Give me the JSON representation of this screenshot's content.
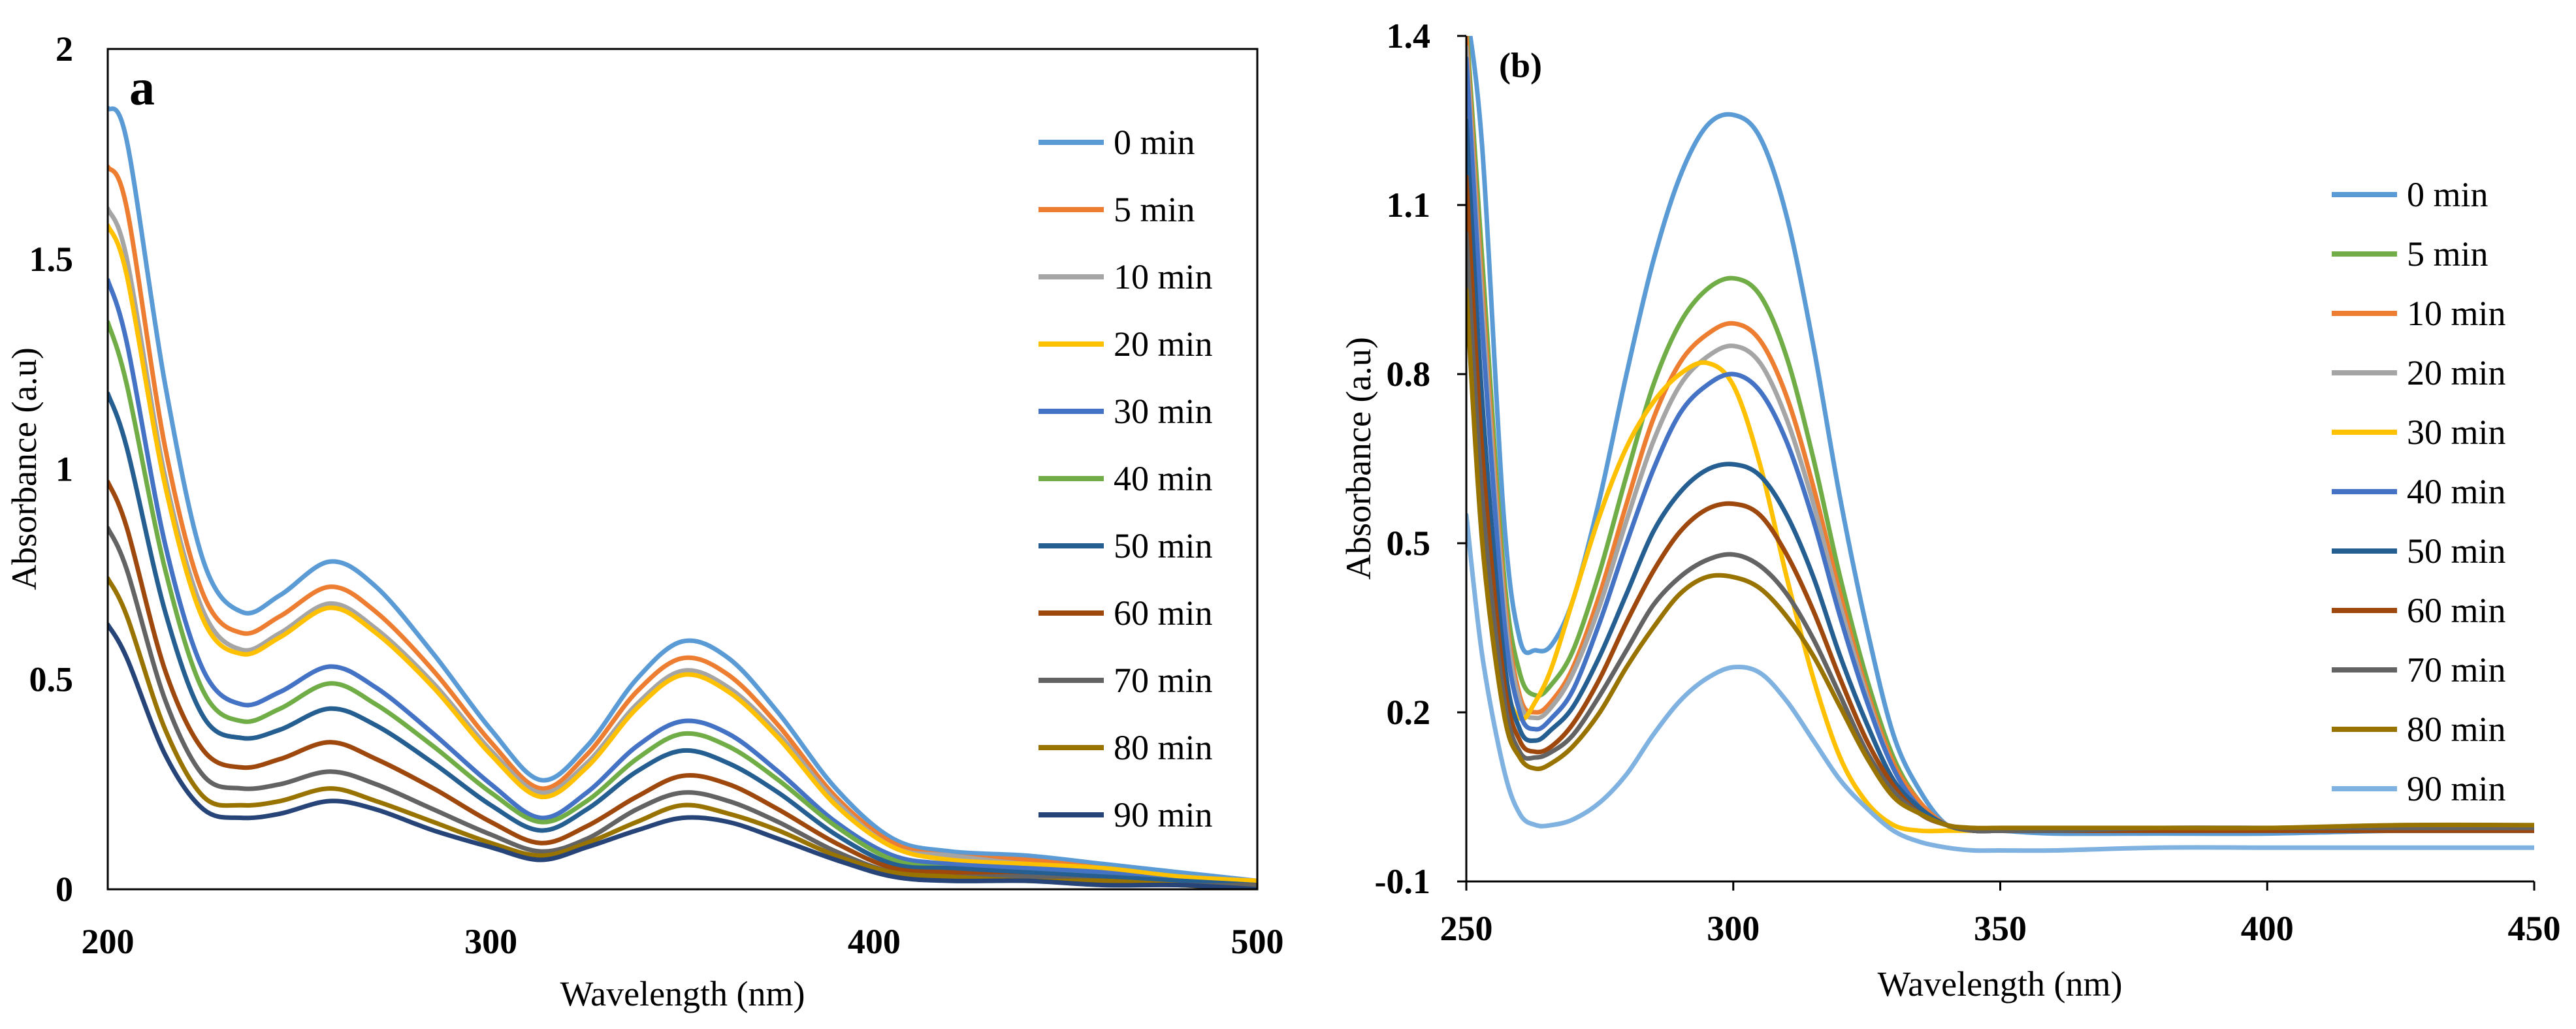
{
  "chart_data": [
    {
      "type": "line",
      "panel_label": "a",
      "title": "",
      "xlabel": "Wavelength (nm)",
      "ylabel": "Absorbance (a.u)",
      "xlim": [
        200,
        500
      ],
      "ylim": [
        0,
        2
      ],
      "x_ticks": [
        {
          "value": 200,
          "label": "200"
        },
        {
          "value": 300,
          "label": "300"
        },
        {
          "value": 400,
          "label": "400"
        },
        {
          "value": 500,
          "label": "500"
        }
      ],
      "y_ticks": [
        {
          "value": 0,
          "label": "0"
        },
        {
          "value": 0.5,
          "label": "0.5"
        },
        {
          "value": 1,
          "label": "1"
        },
        {
          "value": 1.5,
          "label": "1.5"
        },
        {
          "value": 2,
          "label": "2"
        }
      ],
      "legend_position": "right",
      "grid": false,
      "x": [
        200,
        205,
        215,
        225,
        235,
        245,
        258,
        270,
        285,
        300,
        313,
        325,
        338,
        350,
        362,
        375,
        390,
        405,
        420,
        440,
        460,
        480,
        500
      ],
      "series": [
        {
          "name": "0 min",
          "color": "#5B9BD5",
          "values": [
            1.86,
            1.78,
            1.2,
            0.78,
            0.66,
            0.7,
            0.78,
            0.72,
            0.56,
            0.38,
            0.26,
            0.34,
            0.5,
            0.59,
            0.55,
            0.42,
            0.24,
            0.12,
            0.09,
            0.08,
            0.06,
            0.04,
            0.02
          ]
        },
        {
          "name": "5 min",
          "color": "#ED7D31",
          "values": [
            1.72,
            1.62,
            1.05,
            0.7,
            0.61,
            0.65,
            0.72,
            0.66,
            0.52,
            0.35,
            0.24,
            0.32,
            0.47,
            0.55,
            0.51,
            0.39,
            0.22,
            0.11,
            0.08,
            0.07,
            0.05,
            0.03,
            0.02
          ]
        },
        {
          "name": "10 min",
          "color": "#A5A5A5",
          "values": [
            1.62,
            1.5,
            0.98,
            0.66,
            0.57,
            0.61,
            0.68,
            0.62,
            0.49,
            0.33,
            0.23,
            0.3,
            0.44,
            0.52,
            0.48,
            0.37,
            0.21,
            0.1,
            0.08,
            0.06,
            0.05,
            0.03,
            0.02
          ]
        },
        {
          "name": "20 min",
          "color": "#FFC000",
          "values": [
            1.58,
            1.46,
            0.96,
            0.64,
            0.56,
            0.6,
            0.67,
            0.61,
            0.48,
            0.32,
            0.22,
            0.29,
            0.43,
            0.51,
            0.47,
            0.36,
            0.2,
            0.1,
            0.07,
            0.06,
            0.05,
            0.03,
            0.02
          ]
        },
        {
          "name": "30 min",
          "color": "#4472C4",
          "values": [
            1.45,
            1.3,
            0.82,
            0.52,
            0.44,
            0.47,
            0.53,
            0.48,
            0.37,
            0.25,
            0.17,
            0.23,
            0.34,
            0.4,
            0.37,
            0.28,
            0.16,
            0.08,
            0.06,
            0.05,
            0.04,
            0.02,
            0.01
          ]
        },
        {
          "name": "40 min",
          "color": "#70AD47",
          "values": [
            1.35,
            1.2,
            0.76,
            0.47,
            0.4,
            0.43,
            0.49,
            0.44,
            0.34,
            0.23,
            0.16,
            0.21,
            0.31,
            0.37,
            0.34,
            0.26,
            0.15,
            0.07,
            0.05,
            0.04,
            0.03,
            0.02,
            0.01
          ]
        },
        {
          "name": "50 min",
          "color": "#255E91",
          "values": [
            1.18,
            1.05,
            0.66,
            0.41,
            0.36,
            0.38,
            0.43,
            0.39,
            0.3,
            0.2,
            0.14,
            0.19,
            0.28,
            0.33,
            0.3,
            0.23,
            0.13,
            0.06,
            0.05,
            0.04,
            0.03,
            0.02,
            0.01
          ]
        },
        {
          "name": "60 min",
          "color": "#9E480E",
          "values": [
            0.97,
            0.86,
            0.52,
            0.33,
            0.29,
            0.31,
            0.35,
            0.31,
            0.24,
            0.16,
            0.11,
            0.15,
            0.22,
            0.27,
            0.25,
            0.19,
            0.11,
            0.05,
            0.04,
            0.03,
            0.02,
            0.01,
            0.01
          ]
        },
        {
          "name": "70 min",
          "color": "#636363",
          "values": [
            0.86,
            0.76,
            0.45,
            0.27,
            0.24,
            0.25,
            0.28,
            0.25,
            0.19,
            0.13,
            0.09,
            0.12,
            0.19,
            0.23,
            0.21,
            0.16,
            0.09,
            0.04,
            0.03,
            0.03,
            0.02,
            0.01,
            0.01
          ]
        },
        {
          "name": "80 min",
          "color": "#997300",
          "values": [
            0.74,
            0.65,
            0.38,
            0.22,
            0.2,
            0.21,
            0.24,
            0.21,
            0.16,
            0.11,
            0.08,
            0.11,
            0.16,
            0.2,
            0.18,
            0.14,
            0.08,
            0.04,
            0.03,
            0.02,
            0.02,
            0.01,
            0.0
          ]
        },
        {
          "name": "90 min",
          "color": "#264478",
          "values": [
            0.63,
            0.55,
            0.32,
            0.19,
            0.17,
            0.18,
            0.21,
            0.19,
            0.14,
            0.1,
            0.07,
            0.1,
            0.14,
            0.17,
            0.16,
            0.12,
            0.07,
            0.03,
            0.02,
            0.02,
            0.01,
            0.01,
            0.0
          ]
        }
      ]
    },
    {
      "type": "line",
      "panel_label": "(b)",
      "title": "",
      "xlabel": "Wavelength (nm)",
      "ylabel": "Absorbance (a.u)",
      "xlim": [
        250,
        450
      ],
      "ylim": [
        -0.1,
        1.4
      ],
      "x_ticks": [
        {
          "value": 250,
          "label": "250"
        },
        {
          "value": 300,
          "label": "300"
        },
        {
          "value": 350,
          "label": "350"
        },
        {
          "value": 400,
          "label": "400"
        },
        {
          "value": 450,
          "label": "450"
        }
      ],
      "y_ticks": [
        {
          "value": -0.1,
          "label": "-0.1"
        },
        {
          "value": 0.2,
          "label": "0.2"
        },
        {
          "value": 0.5,
          "label": "0.5"
        },
        {
          "value": 0.8,
          "label": "0.8"
        },
        {
          "value": 1.1,
          "label": "1.1"
        },
        {
          "value": 1.4,
          "label": "1.4"
        }
      ],
      "legend_position": "right",
      "grid": false,
      "x": [
        250,
        253,
        257,
        260,
        263,
        266,
        270,
        275,
        280,
        285,
        290,
        295,
        300,
        305,
        310,
        315,
        320,
        325,
        330,
        335,
        340,
        345,
        350,
        360,
        380,
        400,
        425,
        450
      ],
      "series": [
        {
          "name": "0 min",
          "color": "#5B9BD5",
          "values": [
            1.45,
            1.2,
            0.55,
            0.33,
            0.31,
            0.32,
            0.4,
            0.58,
            0.8,
            1.0,
            1.15,
            1.24,
            1.26,
            1.22,
            1.08,
            0.85,
            0.58,
            0.35,
            0.16,
            0.06,
            0.0,
            -0.01,
            -0.01,
            -0.015,
            -0.015,
            -0.015,
            -0.01,
            -0.01
          ]
        },
        {
          "name": "5 min",
          "color": "#70AD47",
          "values": [
            1.42,
            1.0,
            0.45,
            0.27,
            0.23,
            0.25,
            0.31,
            0.45,
            0.62,
            0.78,
            0.89,
            0.95,
            0.97,
            0.94,
            0.83,
            0.65,
            0.44,
            0.26,
            0.12,
            0.04,
            0.0,
            -0.01,
            -0.01,
            -0.01,
            -0.01,
            -0.01,
            -0.01,
            -0.01
          ]
        },
        {
          "name": "10 min",
          "color": "#ED7D31",
          "values": [
            1.4,
            0.95,
            0.42,
            0.23,
            0.2,
            0.22,
            0.28,
            0.41,
            0.57,
            0.72,
            0.82,
            0.87,
            0.89,
            0.86,
            0.76,
            0.6,
            0.41,
            0.24,
            0.11,
            0.04,
            0.0,
            -0.01,
            -0.01,
            -0.01,
            -0.01,
            -0.01,
            -0.01,
            -0.01
          ]
        },
        {
          "name": "20 min",
          "color": "#A5A5A5",
          "values": [
            1.38,
            0.92,
            0.4,
            0.22,
            0.19,
            0.21,
            0.27,
            0.39,
            0.54,
            0.68,
            0.78,
            0.83,
            0.85,
            0.82,
            0.72,
            0.57,
            0.39,
            0.23,
            0.1,
            0.03,
            0.0,
            -0.01,
            -0.01,
            -0.01,
            -0.01,
            -0.01,
            -0.01,
            -0.01
          ]
        },
        {
          "name": "30 min",
          "color": "#FFC000",
          "values": [
            1.3,
            0.65,
            0.28,
            0.19,
            0.22,
            0.28,
            0.4,
            0.55,
            0.67,
            0.75,
            0.8,
            0.82,
            0.78,
            0.64,
            0.44,
            0.26,
            0.12,
            0.04,
            0.0,
            -0.01,
            -0.01,
            -0.01,
            -0.01,
            -0.01,
            -0.01,
            -0.01,
            -0.01,
            -0.01
          ]
        },
        {
          "name": "40 min",
          "color": "#4472C4",
          "values": [
            1.36,
            0.88,
            0.37,
            0.2,
            0.17,
            0.19,
            0.24,
            0.36,
            0.5,
            0.63,
            0.73,
            0.78,
            0.8,
            0.77,
            0.68,
            0.54,
            0.37,
            0.22,
            0.1,
            0.03,
            0.0,
            -0.01,
            -0.01,
            -0.01,
            -0.01,
            -0.01,
            -0.01,
            -0.01
          ]
        },
        {
          "name": "50 min",
          "color": "#255E91",
          "values": [
            1.25,
            0.75,
            0.3,
            0.17,
            0.15,
            0.17,
            0.21,
            0.3,
            0.41,
            0.52,
            0.59,
            0.63,
            0.64,
            0.62,
            0.55,
            0.44,
            0.3,
            0.18,
            0.08,
            0.03,
            0.0,
            -0.01,
            -0.01,
            -0.01,
            -0.01,
            -0.01,
            -0.01,
            -0.01
          ]
        },
        {
          "name": "60 min",
          "color": "#9E480E",
          "values": [
            1.15,
            0.66,
            0.26,
            0.15,
            0.13,
            0.14,
            0.18,
            0.26,
            0.36,
            0.45,
            0.52,
            0.56,
            0.57,
            0.55,
            0.48,
            0.38,
            0.26,
            0.15,
            0.07,
            0.02,
            0.0,
            -0.01,
            -0.01,
            -0.01,
            -0.01,
            -0.01,
            -0.01,
            -0.01
          ]
        },
        {
          "name": "70 min",
          "color": "#636363",
          "values": [
            1.05,
            0.58,
            0.23,
            0.13,
            0.12,
            0.13,
            0.16,
            0.23,
            0.31,
            0.39,
            0.44,
            0.47,
            0.48,
            0.46,
            0.41,
            0.33,
            0.23,
            0.13,
            0.06,
            0.02,
            0.0,
            -0.01,
            -0.01,
            -0.01,
            -0.005,
            -0.005,
            -0.005,
            -0.005
          ]
        },
        {
          "name": "80 min",
          "color": "#997300",
          "values": [
            0.95,
            0.5,
            0.2,
            0.12,
            0.1,
            0.11,
            0.14,
            0.2,
            0.28,
            0.35,
            0.41,
            0.44,
            0.44,
            0.42,
            0.37,
            0.3,
            0.21,
            0.12,
            0.05,
            0.02,
            0.0,
            -0.005,
            -0.005,
            -0.005,
            -0.005,
            -0.005,
            0.0,
            0.0
          ]
        },
        {
          "name": "90 min",
          "color": "#7FB2E0",
          "values": [
            0.55,
            0.3,
            0.1,
            0.02,
            0.0,
            0.0,
            0.01,
            0.04,
            0.09,
            0.16,
            0.22,
            0.26,
            0.28,
            0.27,
            0.22,
            0.15,
            0.08,
            0.03,
            -0.01,
            -0.03,
            -0.04,
            -0.045,
            -0.045,
            -0.045,
            -0.04,
            -0.04,
            -0.04,
            -0.04
          ]
        }
      ]
    }
  ]
}
